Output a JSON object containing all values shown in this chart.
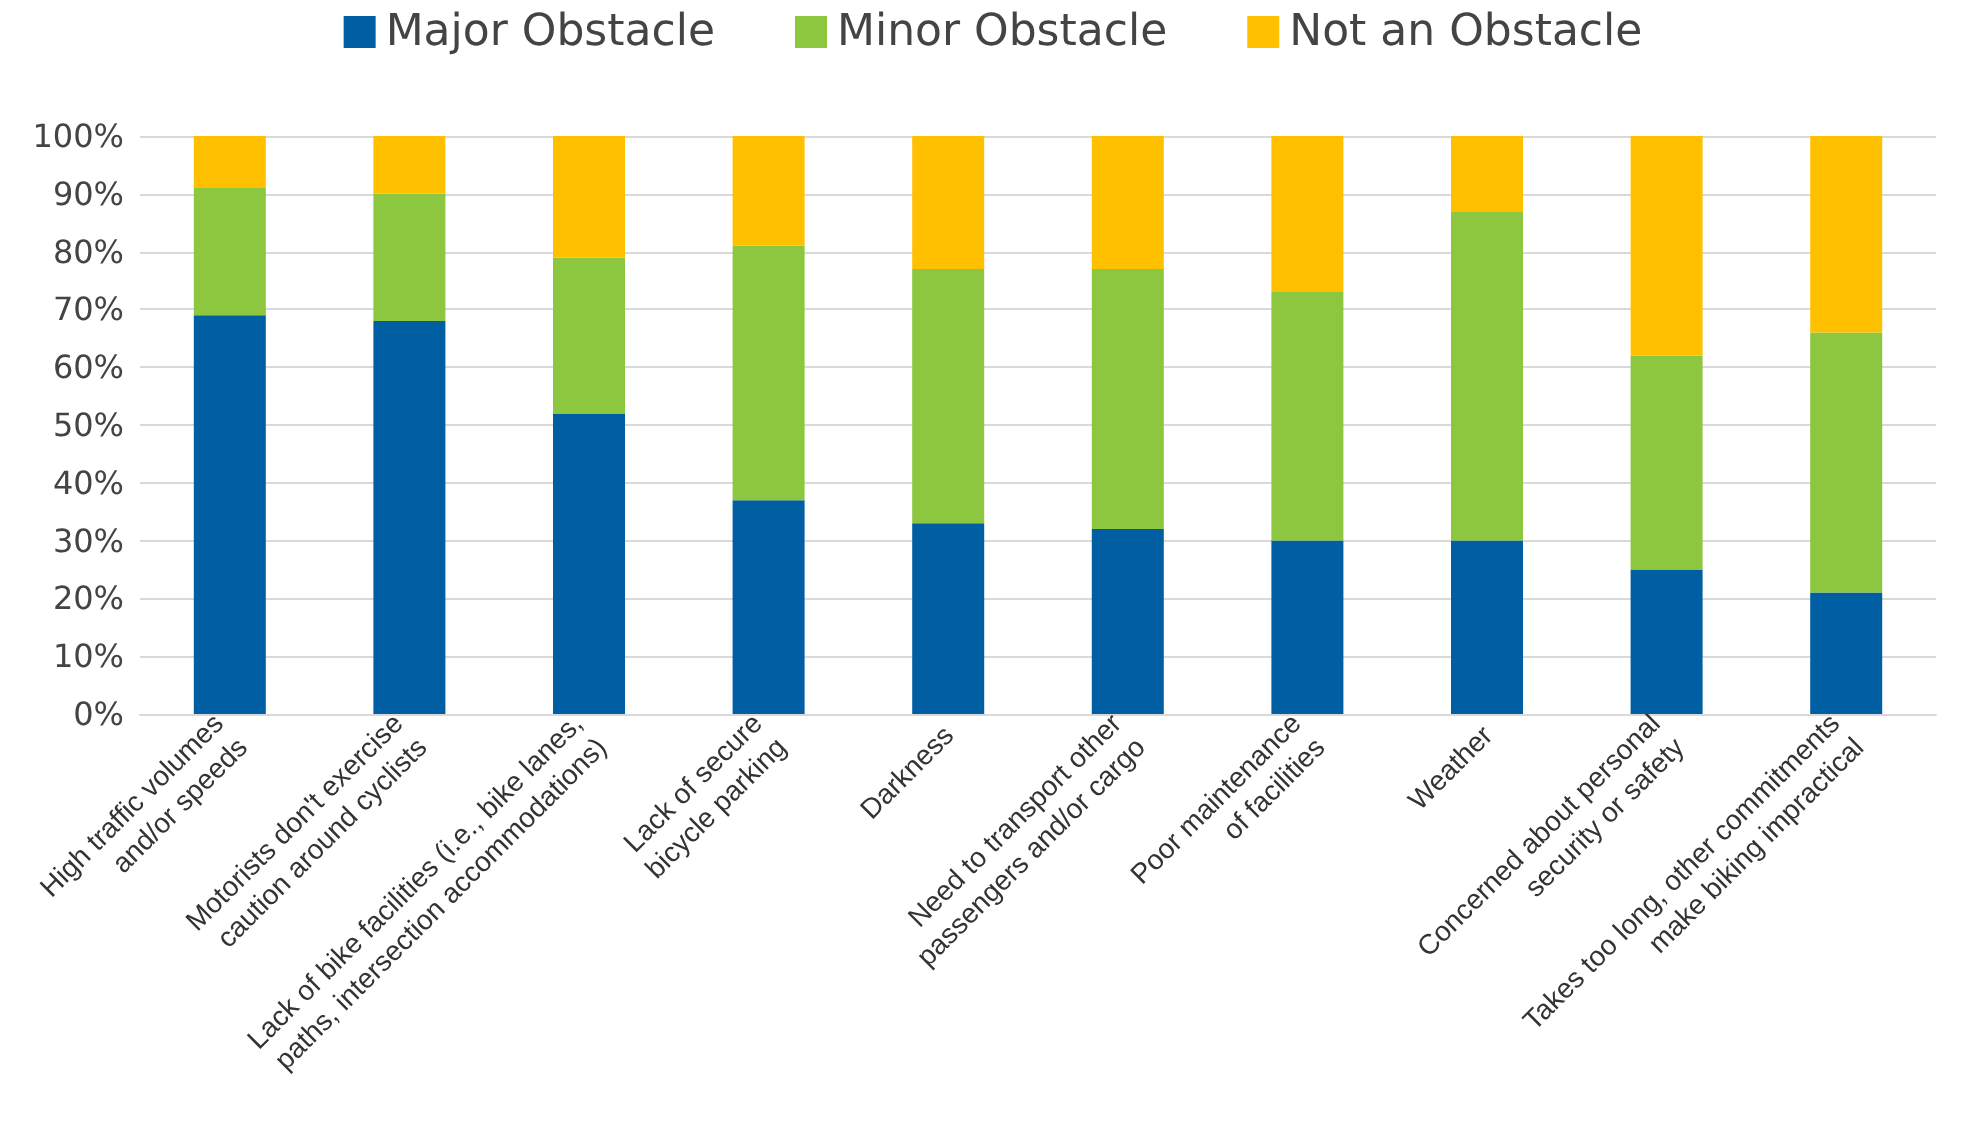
{
  "chart_data": {
    "type": "bar",
    "stacked": true,
    "categories": [
      "High traffic volumes\nand/or speeds",
      "Motorists don't exercise\ncaution around cyclists",
      "Lack of bike facilities (i.e., bike lanes,\npaths, intersection accommodations)",
      "Lack of secure\nbicycle parking",
      "Darkness",
      "Need to transport other\npassengers and/or cargo",
      "Poor maintenance\nof facilities",
      "Weather",
      "Concerned about personal\nsecurity or safety",
      "Takes too long, other commitments\nmake biking impractical"
    ],
    "series": [
      {
        "name": "Major Obstacle",
        "color": "#005ea2",
        "values": [
          69,
          68,
          52,
          37,
          33,
          32,
          30,
          30,
          25,
          21
        ]
      },
      {
        "name": "Minor Obstacle",
        "color": "#8dc63f",
        "values": [
          22,
          22,
          27,
          44,
          44,
          45,
          43,
          57,
          37,
          45
        ]
      },
      {
        "name": "Not an Obstacle",
        "color": "#ffc000",
        "values": [
          9,
          10,
          21,
          19,
          23,
          23,
          27,
          13,
          38,
          34
        ]
      }
    ],
    "ylim": [
      0,
      100
    ],
    "yticks": [
      {
        "value": 0,
        "label": "0%"
      },
      {
        "value": 10,
        "label": "10%"
      },
      {
        "value": 20,
        "label": "20%"
      },
      {
        "value": 30,
        "label": "30%"
      },
      {
        "value": 40,
        "label": "40%"
      },
      {
        "value": 50,
        "label": "50%"
      },
      {
        "value": 60,
        "label": "60%"
      },
      {
        "value": 70,
        "label": "70%"
      },
      {
        "value": 80,
        "label": "80%"
      },
      {
        "value": 90,
        "label": "90%"
      },
      {
        "value": 100,
        "label": "100%"
      }
    ],
    "grid": "y",
    "legend": "top"
  }
}
